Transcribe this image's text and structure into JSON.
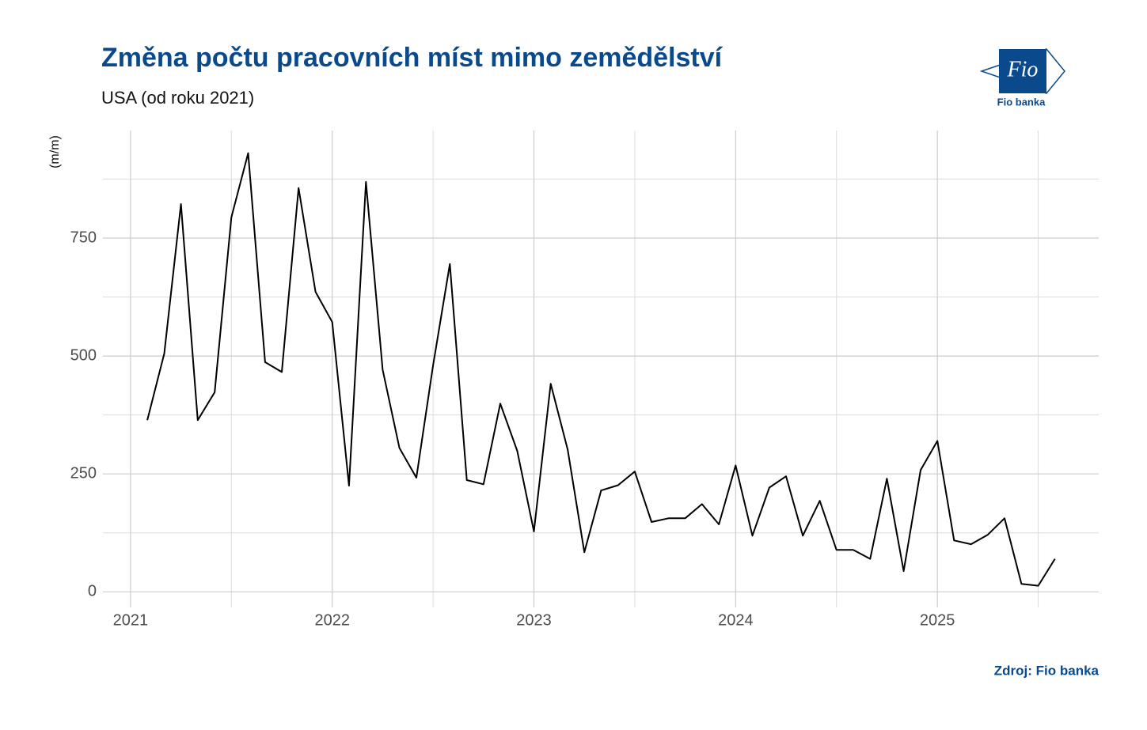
{
  "chart_data": {
    "type": "line",
    "title": "Změna počtu pracovních míst mimo zemědělství",
    "subtitle": "USA (od roku 2021)",
    "y_label": "(m/m)",
    "source": "Zdroj: Fio banka",
    "logo": {
      "mark": "Fio",
      "text": "Fio banka"
    },
    "x": [
      2021.083,
      2021.167,
      2021.25,
      2021.333,
      2021.417,
      2021.5,
      2021.583,
      2021.667,
      2021.75,
      2021.833,
      2021.917,
      2022.0,
      2022.083,
      2022.167,
      2022.25,
      2022.333,
      2022.417,
      2022.5,
      2022.583,
      2022.667,
      2022.75,
      2022.833,
      2022.917,
      2023.0,
      2023.083,
      2023.167,
      2023.25,
      2023.333,
      2023.417,
      2023.5,
      2023.583,
      2023.667,
      2023.75,
      2023.833,
      2023.917,
      2024.0,
      2024.083,
      2024.167,
      2024.25,
      2024.333,
      2024.417,
      2024.5,
      2024.583,
      2024.667,
      2024.75,
      2024.833,
      2024.917,
      2025.0,
      2025.083,
      2025.167,
      2025.25,
      2025.333,
      2025.417,
      2025.5,
      2025.583
    ],
    "series": [
      {
        "color": "#000000",
        "values": [
          364,
          505,
          822,
          364,
          423,
          794,
          930,
          487,
          466,
          856,
          636,
          572,
          225,
          869,
          471,
          305,
          242,
          480,
          695,
          237,
          228,
          399,
          299,
          128,
          441,
          302,
          84,
          215,
          226,
          255,
          148,
          156,
          156,
          186,
          143,
          268,
          119,
          221,
          245,
          119,
          193,
          89,
          89,
          70,
          240,
          44,
          258,
          320,
          109,
          101,
          121,
          156,
          17,
          13,
          70
        ]
      }
    ],
    "xlim": [
      2020.863,
      2025.8
    ],
    "xticks": [
      2021,
      2022,
      2023,
      2024,
      2025
    ],
    "xminorticks": [
      2021.5,
      2022.5,
      2023.5,
      2024.5,
      2025.5
    ],
    "ylim": [
      -33,
      978
    ],
    "yticks": [
      0,
      250,
      500,
      750
    ],
    "yminorticks": [
      125,
      375,
      625,
      875
    ],
    "grid": true
  }
}
